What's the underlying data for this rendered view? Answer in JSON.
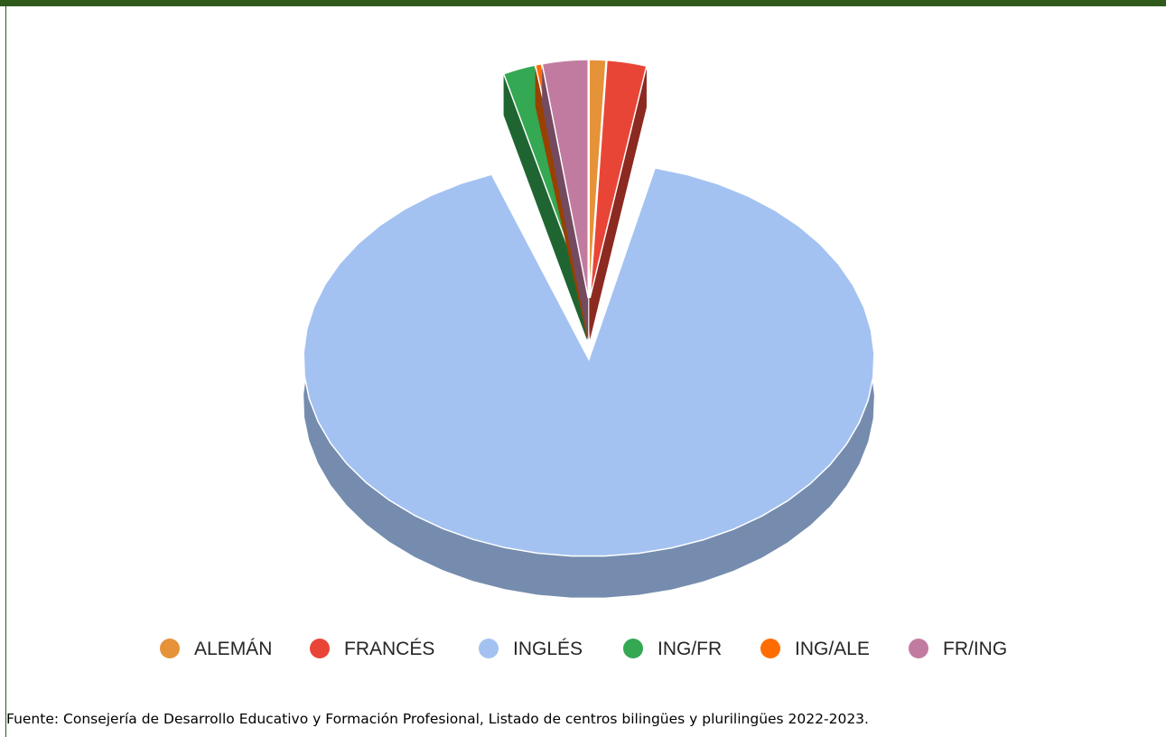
{
  "chart_data": {
    "type": "pie",
    "style": "3d-exploded",
    "categories": [
      "ALEMÁN",
      "FRANCÉS",
      "INGLÉS",
      "ING/FR",
      "ING/ALE",
      "FR/ING"
    ],
    "values": [
      1.1,
      2.6,
      90.2,
      2.1,
      0.4,
      3.0
    ],
    "colors": [
      "#e59239",
      "#e94537",
      "#a3c2f2",
      "#34a853",
      "#ff6d00",
      "#c27ba0"
    ],
    "legend_position": "bottom"
  },
  "source_note": "Fuente: Consejería de Desarrollo Educativo y Formación Profesional, Listado de centros bilingües y plurilingües 2022-2023."
}
